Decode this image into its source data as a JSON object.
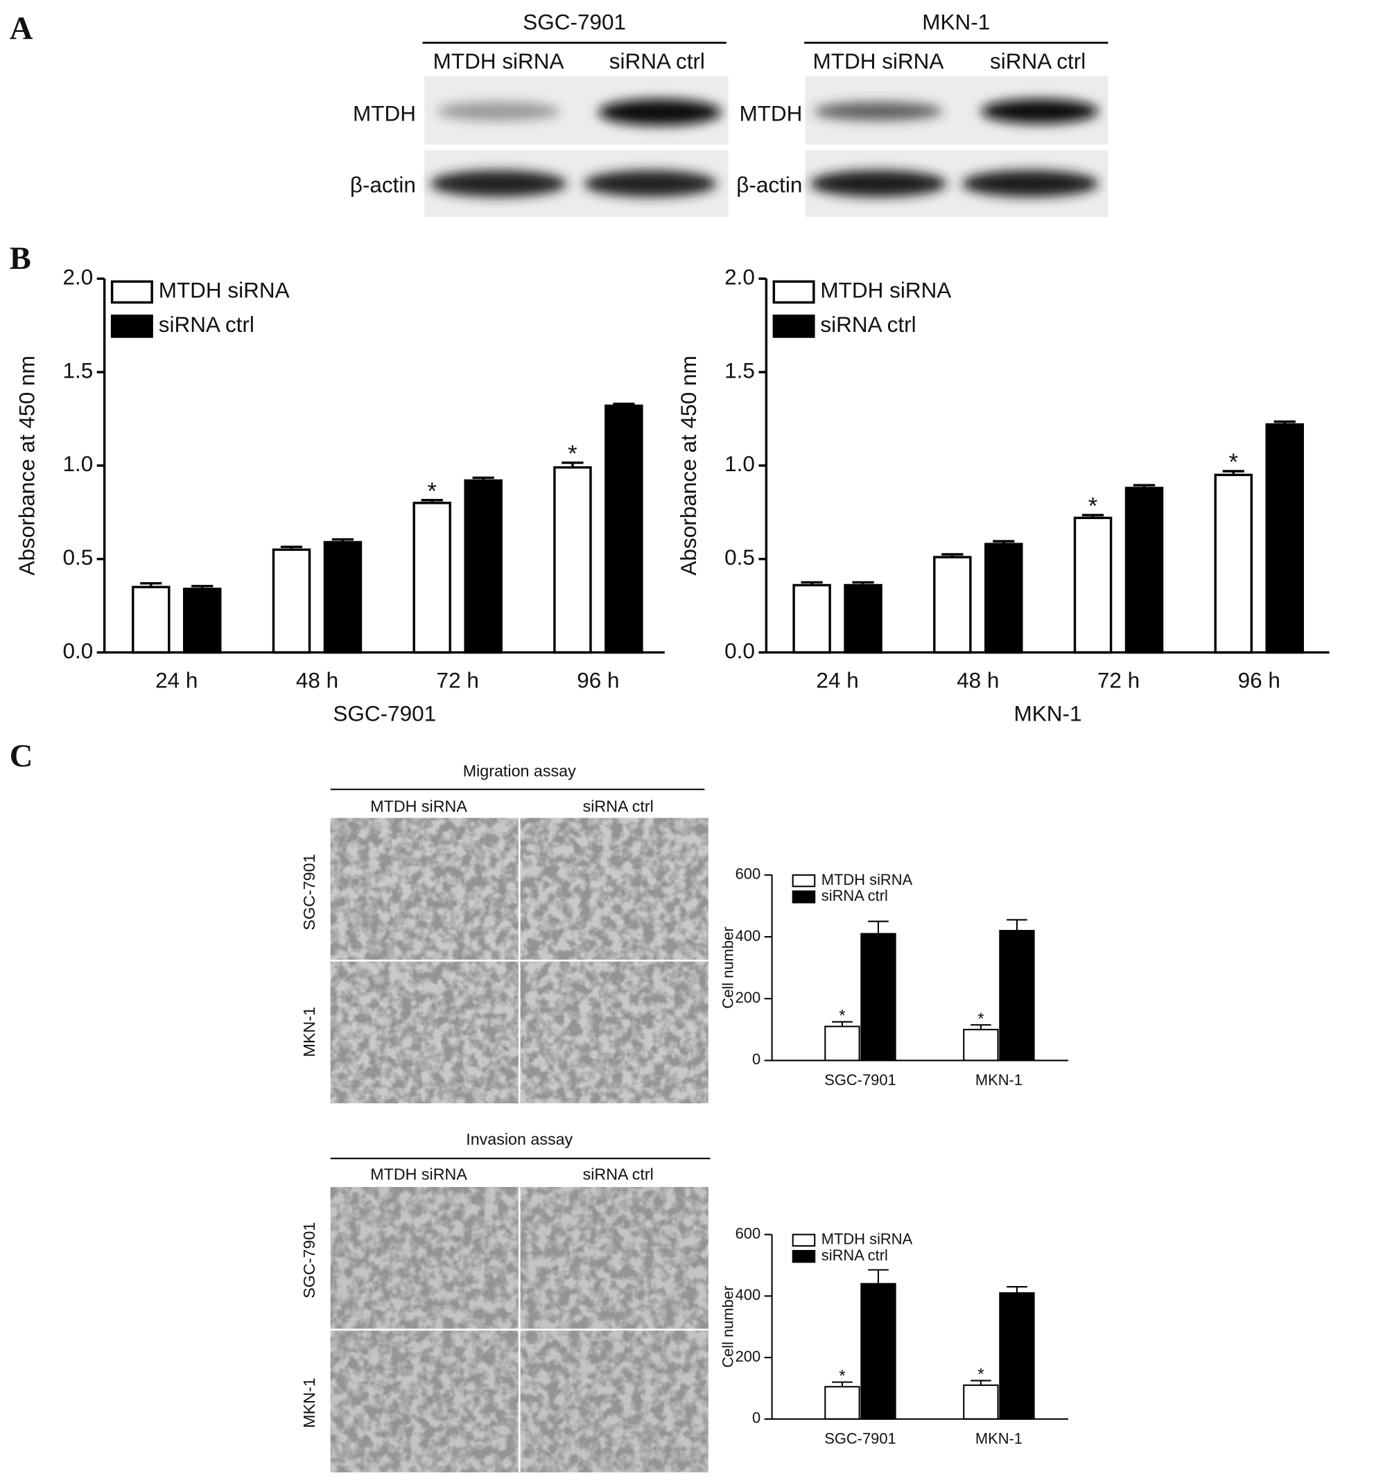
{
  "panel_labels": [
    "A",
    "B",
    "C"
  ],
  "western_blot": [
    {
      "cell_line": "SGC-7901",
      "columns": [
        "MTDH siRNA",
        "siRNA ctrl"
      ],
      "rows": [
        "MTDH",
        "β-actin"
      ]
    },
    {
      "cell_line": "MKN-1",
      "columns": [
        "MTDH siRNA",
        "siRNA ctrl"
      ],
      "rows": [
        "MTDH",
        "β-actin"
      ]
    }
  ],
  "assays": [
    {
      "title": "Migration assay",
      "columns": [
        "MTDH siRNA",
        "siRNA ctrl"
      ],
      "rows": [
        "SGC-7901",
        "MKN-1"
      ]
    },
    {
      "title": "Invasion assay",
      "columns": [
        "MTDH siRNA",
        "siRNA ctrl"
      ],
      "rows": [
        "SGC-7901",
        "MKN-1"
      ]
    }
  ],
  "chart_data": [
    {
      "type": "bar",
      "x_label": "SGC-7901",
      "y_label": "Absorbance at 450 nm",
      "categories": [
        "24 h",
        "48 h",
        "72 h",
        "96 h"
      ],
      "ylim": [
        0,
        2
      ],
      "yticks": [
        {
          "value": 0,
          "label": "0.0"
        },
        0.5,
        {
          "value": 1,
          "label": "1.0"
        },
        1.5,
        {
          "value": 2,
          "label": "2.0"
        }
      ],
      "series": [
        {
          "name": "MTDH siRNA",
          "color": "#ffffff",
          "values": [
            0.35,
            0.55,
            0.8,
            0.99
          ],
          "errors": [
            0.02,
            0.015,
            0.015,
            0.025
          ],
          "markers": [
            null,
            null,
            "*",
            "*"
          ]
        },
        {
          "name": "siRNA ctrl",
          "color": "#000000",
          "values": [
            0.34,
            0.59,
            0.92,
            1.32
          ],
          "errors": [
            0.015,
            0.015,
            0.015,
            0.01
          ]
        }
      ]
    },
    {
      "type": "bar",
      "x_label": "MKN-1",
      "y_label": "Absorbance at 450 nm",
      "categories": [
        "24 h",
        "48 h",
        "72 h",
        "96 h"
      ],
      "ylim": [
        0,
        2
      ],
      "yticks": [
        {
          "value": 0,
          "label": "0.0"
        },
        0.5,
        {
          "value": 1,
          "label": "1.0"
        },
        1.5,
        {
          "value": 2,
          "label": "2.0"
        }
      ],
      "series": [
        {
          "name": "MTDH siRNA",
          "color": "#ffffff",
          "values": [
            0.36,
            0.51,
            0.72,
            0.95
          ],
          "errors": [
            0.015,
            0.015,
            0.015,
            0.02
          ],
          "markers": [
            null,
            null,
            "*",
            "*"
          ]
        },
        {
          "name": "siRNA ctrl",
          "color": "#000000",
          "values": [
            0.36,
            0.58,
            0.88,
            1.22
          ],
          "errors": [
            0.015,
            0.015,
            0.015,
            0.015
          ]
        }
      ]
    },
    {
      "type": "bar",
      "y_label": "Cell number",
      "categories": [
        "SGC-7901",
        "MKN-1"
      ],
      "ylim": [
        0,
        600
      ],
      "yticks": [
        0,
        200,
        400,
        600
      ],
      "series": [
        {
          "name": "MTDH siRNA",
          "color": "#ffffff",
          "values": [
            110,
            100
          ],
          "errors": [
            15,
            15
          ],
          "markers": [
            "*",
            "*"
          ]
        },
        {
          "name": "siRNA ctrl",
          "color": "#000000",
          "values": [
            410,
            420
          ],
          "errors": [
            40,
            35
          ]
        }
      ]
    },
    {
      "type": "bar",
      "y_label": "Cell number",
      "categories": [
        "SGC-7901",
        "MKN-1"
      ],
      "ylim": [
        0,
        600
      ],
      "yticks": [
        0,
        200,
        400,
        600
      ],
      "series": [
        {
          "name": "MTDH siRNA",
          "color": "#ffffff",
          "values": [
            105,
            110
          ],
          "errors": [
            15,
            15
          ],
          "markers": [
            "*",
            "*"
          ]
        },
        {
          "name": "siRNA ctrl",
          "color": "#000000",
          "values": [
            440,
            410
          ],
          "errors": [
            45,
            20
          ]
        }
      ]
    }
  ]
}
